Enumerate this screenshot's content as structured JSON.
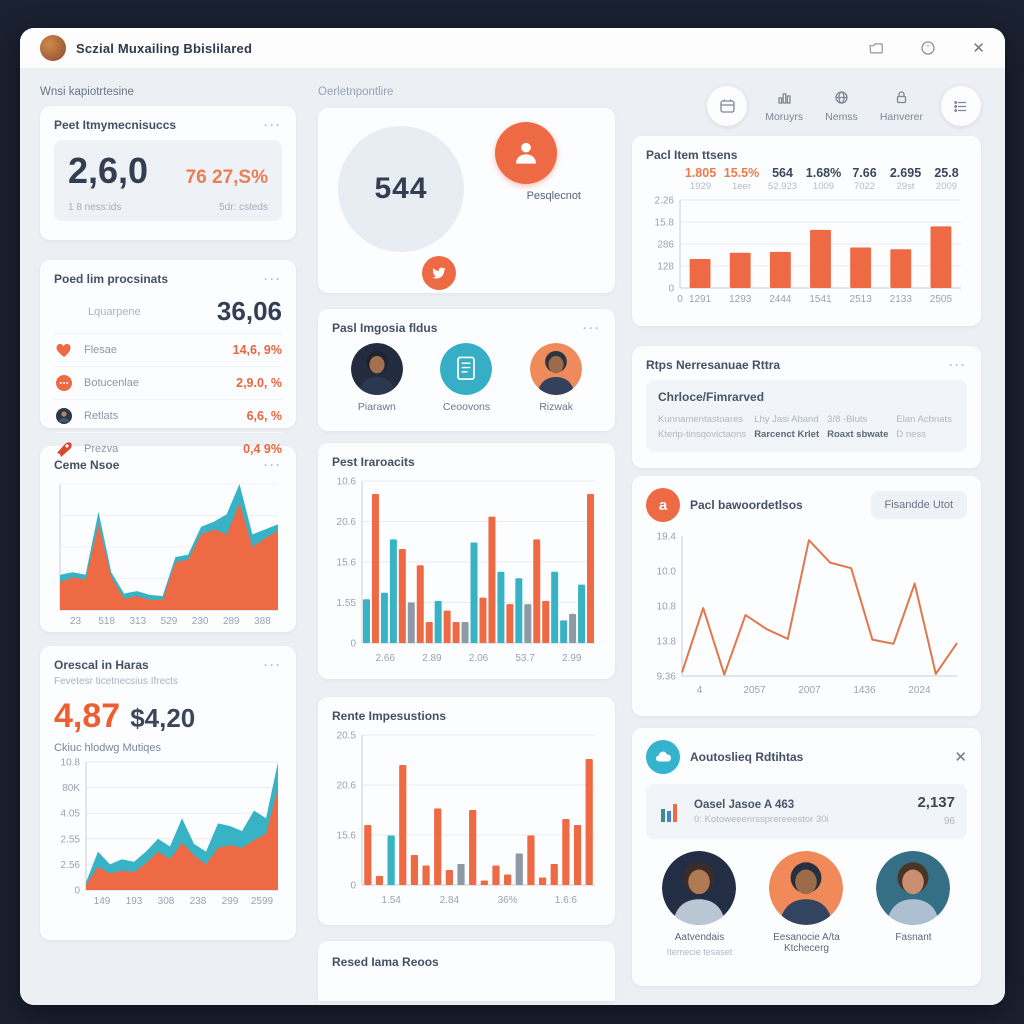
{
  "colors": {
    "accent": "#ee6a45",
    "teal": "#38b2c5",
    "dark": "#333e52",
    "gray_bar": "#8d9aa6"
  },
  "window": {
    "title": "Sczial Muxailing Bbislilared",
    "titlebar_icons": [
      "folder-icon",
      "help-icon",
      "close-icon"
    ],
    "close_glyph": "✕"
  },
  "header": {
    "left_label": "Wnsi kapiotrtesine",
    "center_label": "Oerletnpontlire",
    "buttons": [
      {
        "label": "Moruyrs",
        "icon": "chart-bars-icon"
      },
      {
        "label": "Nemss",
        "icon": "globe-icon"
      },
      {
        "label": "Hanverer",
        "icon": "lock-icon"
      }
    ],
    "round_buttons": [
      {
        "icon": "calendar-icon"
      },
      {
        "icon": "list-icon"
      }
    ]
  },
  "kpi_card": {
    "title": "Peet Itmymecnisuccs",
    "menu": "···",
    "value": "2,6,0",
    "delta": "76 27,S%",
    "foot_left": "1 8 ness:ids",
    "foot_right": "5dr: csteds"
  },
  "engagement_card": {
    "title": "Poed lim procsinats",
    "menu": "···",
    "lead_label": "Lquarpene",
    "lead_value": "36,06",
    "rows": [
      {
        "icon": "likes-icon",
        "label": "Flesae",
        "value": "14,6, 9%"
      },
      {
        "icon": "comment-icon",
        "label": "Botucenlae",
        "value": "2,9.0, %"
      },
      {
        "icon": "user-icon",
        "label": "Retlats",
        "value": "6,6, %"
      },
      {
        "icon": "rocket-icon",
        "label": "Prezva",
        "value": "0,4 9%"
      }
    ]
  },
  "curve_card": {
    "title": "Ceme Nsoe",
    "menu": "···"
  },
  "growth_card": {
    "title": "Orescal in Haras",
    "menu": "···",
    "subtitle": "Fevetesr ticetnecsius Ifrects",
    "value_primary": "4,87",
    "value_secondary": "$4,20",
    "caption": "Ckiuc hlodwg Mutiqes"
  },
  "donut_card": {
    "value": "544",
    "badge_label": "Pesqlecnot",
    "badge_icon": "person-icon",
    "bird_icon": "bird-icon"
  },
  "avatars_card": {
    "title": "Pasl Imgosia fldus",
    "menu": "···",
    "items": [
      {
        "label": "Piarawn",
        "kind": "person",
        "bg": "#222c3e",
        "skin": "#a4714f",
        "hair": "#1d2430",
        "shirt": "#2b3850"
      },
      {
        "label": "Ceoovons",
        "kind": "doc",
        "bg": "#35aec6"
      },
      {
        "label": "Rizwak",
        "kind": "person",
        "bg": "#ef8a5a",
        "skin": "#9c6b4a",
        "hair": "#2a3340",
        "shirt": "#33415c"
      }
    ]
  },
  "pest_card": {
    "title": "Pest Iraroacits"
  },
  "rente_card": {
    "title": "Rente Impesustions"
  },
  "strip_card": {
    "title": "Resed Iama Reoos"
  },
  "topchart_card": {
    "title": "Pacl Item ttsens"
  },
  "raps_card": {
    "title": "Rtps Nerresanuae Rttra",
    "menu": "···",
    "box_title": "Chrloce/Fimrarved",
    "columns": [
      {
        "top": "Kunnamentastoares",
        "bottom": "Kterip-tinsqovictaons",
        "bottom_dark": false
      },
      {
        "top": "Lhy Jasi Aband",
        "bottom": "Rarcenct Krlet",
        "bottom_dark": true
      },
      {
        "top": "3/8 -Bluts",
        "bottom": "Roaxt sbwate",
        "bottom_dark": true
      },
      {
        "top": "Elan Acbnats",
        "bottom": "D ness",
        "bottom_dark": false
      }
    ]
  },
  "line_card": {
    "title": "Pacl bawoordetlsos",
    "icon_glyph": "a",
    "button": "Fisandde Utot"
  },
  "auto_card": {
    "title": "Aoutoslieq Rdtihtas",
    "icon": "cloud-icon",
    "close_glyph": "✕",
    "item": {
      "icon": "mini-bars-icon",
      "name": "Oasel Jasoe A 463",
      "sub": "0: Kotoweeenrssprereeestor 30i",
      "value": "2,137",
      "sub_value": "96"
    },
    "people": [
      {
        "name": "Aatvendais",
        "sub": "Itemecie tesaset",
        "bg": "#232e44",
        "skin": "#b07a54",
        "hair": "#3a2c28",
        "shirt": "#b9c6d4"
      },
      {
        "name": "Eesanocie A/ta Ktchecerg",
        "sub": "",
        "bg": "#f08a58",
        "skin": "#9c6b4a",
        "hair": "#26303f",
        "shirt": "#334461"
      },
      {
        "name": "Fasnant",
        "sub": "",
        "bg": "#356f86",
        "skin": "#c89070",
        "hair": "#4a3426",
        "shirt": "#aebfd2"
      }
    ]
  },
  "chart_data": {
    "top_bars": {
      "type": "bar",
      "stats": [
        {
          "value": "1.805",
          "sub": "1929",
          "accent": true
        },
        {
          "value": "15.5%",
          "sub": "1eer",
          "accent": true
        },
        {
          "value": "564",
          "sub": "52.923",
          "accent": false
        },
        {
          "value": "1.68%",
          "sub": "1009",
          "accent": false
        },
        {
          "value": "7.66",
          "sub": "7022",
          "accent": false
        },
        {
          "value": "2.695",
          "sub": "29st",
          "accent": false
        },
        {
          "value": "25.8",
          "sub": "2009",
          "accent": false
        }
      ],
      "y_ticks": [
        "2.26",
        "15.8",
        "286",
        "128",
        "0"
      ],
      "x_ticks": [
        "0",
        "1291",
        "1293",
        "2444",
        "1541",
        "2513",
        "2133",
        "2505"
      ],
      "values": [
        33,
        40,
        41,
        66,
        46,
        44,
        70
      ]
    },
    "curve_area": {
      "type": "area",
      "x_ticks": [
        "23",
        "518",
        "313",
        "529",
        "230",
        "289",
        "388"
      ],
      "teal": [
        28,
        30,
        28,
        78,
        30,
        13,
        15,
        12,
        11,
        42,
        44,
        66,
        70,
        76,
        100,
        60,
        64,
        68
      ],
      "orange": [
        22,
        26,
        24,
        68,
        26,
        9,
        11,
        8,
        8,
        38,
        40,
        60,
        64,
        60,
        85,
        50,
        57,
        63
      ]
    },
    "growth_area": {
      "type": "area",
      "y_ticks": [
        "10.8",
        "80K",
        "4.05",
        "2.55",
        "2.56",
        "0"
      ],
      "x_ticks": [
        "149",
        "193",
        "308",
        "238",
        "299",
        "2599"
      ],
      "teal": [
        6,
        30,
        20,
        24,
        22,
        30,
        40,
        34,
        56,
        36,
        30,
        52,
        50,
        46,
        62,
        56,
        100
      ],
      "orange": [
        4,
        18,
        13,
        15,
        14,
        21,
        30,
        24,
        37,
        27,
        20,
        33,
        35,
        33,
        39,
        44,
        80
      ]
    },
    "pest_bars": {
      "type": "bar",
      "y_ticks": [
        "10.6",
        "20.6",
        "15.6",
        "1.55",
        "0"
      ],
      "x_ticks": [
        "2.66",
        "2.89",
        "2.06",
        "53.7",
        "2.99"
      ],
      "bars": [
        {
          "c": "teal",
          "v": 27
        },
        {
          "c": "orange",
          "v": 92
        },
        {
          "c": "teal",
          "v": 31
        },
        {
          "c": "teal",
          "v": 64
        },
        {
          "c": "orange",
          "v": 58
        },
        {
          "c": "gray",
          "v": 25
        },
        {
          "c": "orange",
          "v": 48
        },
        {
          "c": "orange",
          "v": 13
        },
        {
          "c": "teal",
          "v": 26
        },
        {
          "c": "orange",
          "v": 20
        },
        {
          "c": "orange",
          "v": 13
        },
        {
          "c": "gray",
          "v": 13
        },
        {
          "c": "teal",
          "v": 62
        },
        {
          "c": "orange",
          "v": 28
        },
        {
          "c": "orange",
          "v": 78
        },
        {
          "c": "teal",
          "v": 44
        },
        {
          "c": "orange",
          "v": 24
        },
        {
          "c": "teal",
          "v": 40
        },
        {
          "c": "gray",
          "v": 24
        },
        {
          "c": "orange",
          "v": 64
        },
        {
          "c": "orange",
          "v": 26
        },
        {
          "c": "teal",
          "v": 44
        },
        {
          "c": "teal",
          "v": 14
        },
        {
          "c": "gray",
          "v": 18
        },
        {
          "c": "teal",
          "v": 36
        },
        {
          "c": "orange",
          "v": 92
        }
      ]
    },
    "rente_bars": {
      "type": "bar",
      "y_ticks": [
        "20.5",
        "20.6",
        "15.6",
        "0"
      ],
      "x_ticks": [
        "1.54",
        "2.84",
        "36%",
        "1.6:6"
      ],
      "bars": [
        {
          "c": "orange",
          "v": 40
        },
        {
          "c": "orange",
          "v": 6
        },
        {
          "c": "teal",
          "v": 33
        },
        {
          "c": "orange",
          "v": 80
        },
        {
          "c": "orange",
          "v": 20
        },
        {
          "c": "orange",
          "v": 13
        },
        {
          "c": "orange",
          "v": 51
        },
        {
          "c": "orange",
          "v": 10
        },
        {
          "c": "gray",
          "v": 14
        },
        {
          "c": "orange",
          "v": 50
        },
        {
          "c": "orange",
          "v": 3
        },
        {
          "c": "orange",
          "v": 13
        },
        {
          "c": "orange",
          "v": 7
        },
        {
          "c": "gray",
          "v": 21
        },
        {
          "c": "orange",
          "v": 33
        },
        {
          "c": "orange",
          "v": 5
        },
        {
          "c": "orange",
          "v": 14
        },
        {
          "c": "orange",
          "v": 44
        },
        {
          "c": "orange",
          "v": 40
        },
        {
          "c": "orange",
          "v": 84
        }
      ]
    },
    "line_chart": {
      "type": "line",
      "y_ticks": [
        "19.4",
        "10.0",
        "10.8",
        "13.8",
        "9.36"
      ],
      "x_ticks": [
        "4",
        "2057",
        "2007",
        "1436",
        "2024"
      ],
      "max": 20,
      "points": [
        0.5,
        9.7,
        0.2,
        8.7,
        6.7,
        5.3,
        19.4,
        16.2,
        15.4,
        5.2,
        4.6,
        13.2,
        0.3,
        4.7
      ]
    }
  }
}
